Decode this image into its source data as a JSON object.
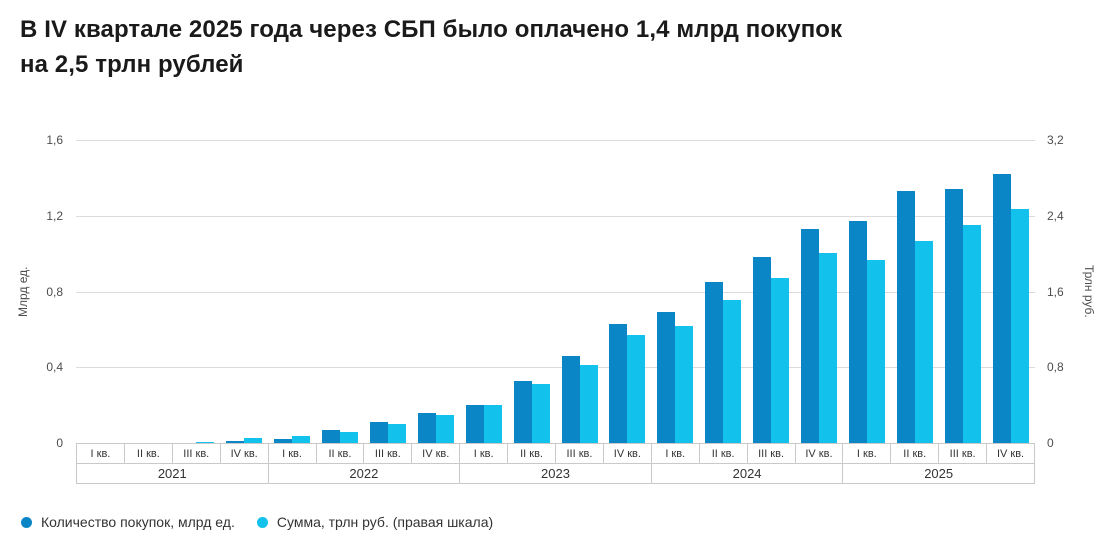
{
  "title": {
    "lines": [
      "В IV квартале 2025 года через СБП было оплачено 1,4 млрд покупок",
      "на 2,5 трлн рублей"
    ],
    "full": "В IV квартале 2025 года через СБП было оплачено 1,4 млрд покупок на 2,5 трлн рублей"
  },
  "chart_data": {
    "type": "bar",
    "title": "В IV квартале 2025 года через СБП было оплачено 1,4 млрд покупок на 2,5 трлн рублей",
    "years": [
      "2021",
      "2022",
      "2023",
      "2024",
      "2025"
    ],
    "quarter_labels": [
      "I кв.",
      "II кв.",
      "III кв.",
      "IV кв."
    ],
    "left_axis": {
      "label": "Млрд ед.",
      "ticks": [
        "1,6",
        "1,2",
        "0,8",
        "0,4",
        "0"
      ],
      "min": 0,
      "max": 1.6
    },
    "right_axis": {
      "label": "Трлн руб.",
      "ticks": [
        "3,2",
        "2,4",
        "1,6",
        "0,8",
        "0"
      ],
      "min": 0,
      "max": 3.2
    },
    "grid": true,
    "legend_position": "bottom-left",
    "series": [
      {
        "name": "Количество покупок, млрд ед.",
        "axis": "left",
        "color": "#0a86c6",
        "values": [
          0,
          0,
          0,
          0.01,
          0.02,
          0.07,
          0.11,
          0.16,
          0.2,
          0.33,
          0.46,
          0.63,
          0.69,
          0.85,
          0.98,
          1.13,
          1.17,
          1.33,
          1.34,
          1.42
        ]
      },
      {
        "name": "Сумма, трлн руб. (правая шкала)",
        "axis": "right",
        "color": "#12c2ec",
        "values": [
          0,
          0,
          0.01,
          0.05,
          0.07,
          0.12,
          0.2,
          0.3,
          0.4,
          0.62,
          0.82,
          1.14,
          1.24,
          1.51,
          1.74,
          2.01,
          1.93,
          2.13,
          2.3,
          2.47
        ]
      }
    ]
  }
}
